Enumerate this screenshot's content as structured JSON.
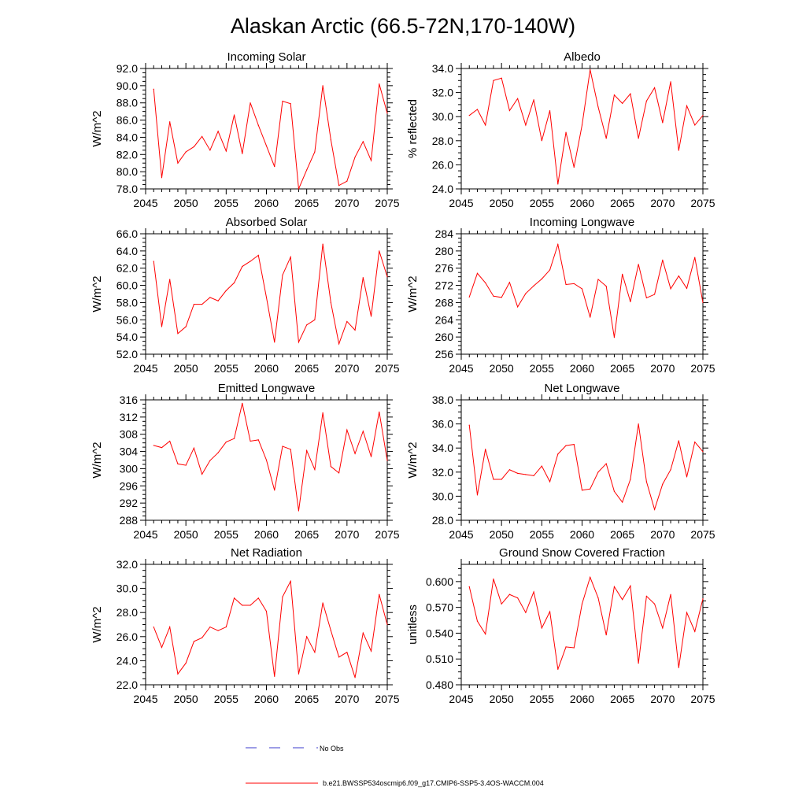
{
  "figure": {
    "title": "Alaskan Arctic (66.5-72N,170-140W)",
    "legend": [
      {
        "label": "No Obs",
        "style": "dashed",
        "color": "#3b3bcc"
      },
      {
        "label": "b.e21.BWSSP534oscmip6.f09_g17.CMIP6-SSP5-3.4OS-WACCM.004",
        "style": "solid",
        "color": "#ff0000"
      }
    ]
  },
  "colors": {
    "series": "#ff0000",
    "axis": "#000000"
  },
  "chart_data": [
    {
      "type": "line",
      "title": "Incoming Solar",
      "xlabel": "",
      "ylabel": "W/m^2",
      "xlim": [
        2045,
        2075
      ],
      "ylim": [
        78,
        92
      ],
      "x_ticks": [
        "2045",
        "2050",
        "2055",
        "2060",
        "2065",
        "2070",
        "2075"
      ],
      "y_ticks": [
        "78.0",
        "80.0",
        "82.0",
        "84.0",
        "86.0",
        "88.0",
        "90.0",
        "92.0"
      ],
      "x": [
        2046,
        2047,
        2048,
        2049,
        2050,
        2051,
        2052,
        2053,
        2054,
        2055,
        2056,
        2057,
        2058,
        2059,
        2060,
        2061,
        2062,
        2063,
        2064,
        2065,
        2066,
        2067,
        2068,
        2069,
        2070,
        2071,
        2072,
        2073,
        2074,
        2075
      ],
      "series": [
        {
          "values": [
            89.6,
            79.3,
            85.8,
            81.0,
            82.3,
            82.9,
            84.1,
            82.5,
            84.7,
            82.4,
            86.6,
            82.1,
            88.0,
            85.4,
            83.0,
            80.6,
            88.2,
            87.9,
            78.0,
            80.2,
            82.3,
            90.0,
            83.7,
            78.4,
            78.9,
            81.7,
            83.5,
            81.3,
            90.2,
            86.8
          ]
        }
      ],
      "grid": false
    },
    {
      "type": "line",
      "title": "Albedo",
      "xlabel": "",
      "ylabel": "% reflected",
      "xlim": [
        2045,
        2075
      ],
      "ylim": [
        24,
        34
      ],
      "x_ticks": [
        "2045",
        "2050",
        "2055",
        "2060",
        "2065",
        "2070",
        "2075"
      ],
      "y_ticks": [
        "24.0",
        "26.0",
        "28.0",
        "30.0",
        "32.0",
        "34.0"
      ],
      "x": [
        2046,
        2047,
        2048,
        2049,
        2050,
        2051,
        2052,
        2053,
        2054,
        2055,
        2056,
        2057,
        2058,
        2059,
        2060,
        2061,
        2062,
        2063,
        2064,
        2065,
        2066,
        2067,
        2068,
        2069,
        2070,
        2071,
        2072,
        2073,
        2074,
        2075
      ],
      "series": [
        {
          "values": [
            30.1,
            30.6,
            29.3,
            33.0,
            33.2,
            30.5,
            31.5,
            29.3,
            31.4,
            28.0,
            30.5,
            24.4,
            28.7,
            25.8,
            29.3,
            33.9,
            30.8,
            28.2,
            31.8,
            31.1,
            31.9,
            28.2,
            31.3,
            32.4,
            29.5,
            32.9,
            27.2,
            30.9,
            29.3,
            30.1
          ]
        }
      ],
      "grid": false
    },
    {
      "type": "line",
      "title": "Absorbed Solar",
      "xlabel": "",
      "ylabel": "W/m^2",
      "xlim": [
        2045,
        2075
      ],
      "ylim": [
        52,
        66
      ],
      "x_ticks": [
        "2045",
        "2050",
        "2055",
        "2060",
        "2065",
        "2070",
        "2075"
      ],
      "y_ticks": [
        "52.0",
        "54.0",
        "56.0",
        "58.0",
        "60.0",
        "62.0",
        "64.0",
        "66.0"
      ],
      "x": [
        2046,
        2047,
        2048,
        2049,
        2050,
        2051,
        2052,
        2053,
        2054,
        2055,
        2056,
        2057,
        2058,
        2059,
        2060,
        2061,
        2062,
        2063,
        2064,
        2065,
        2066,
        2067,
        2068,
        2069,
        2070,
        2071,
        2072,
        2073,
        2074,
        2075
      ],
      "series": [
        {
          "values": [
            62.8,
            55.2,
            60.7,
            54.4,
            55.2,
            57.8,
            57.8,
            58.6,
            58.2,
            59.4,
            60.3,
            62.2,
            62.8,
            63.5,
            58.6,
            53.4,
            61.2,
            63.3,
            53.4,
            55.4,
            56.0,
            64.8,
            58.0,
            53.2,
            55.8,
            54.8,
            60.9,
            56.4,
            64.0,
            61.0
          ]
        }
      ],
      "grid": false
    },
    {
      "type": "line",
      "title": "Incoming Longwave",
      "xlabel": "",
      "ylabel": "W/m^2",
      "xlim": [
        2045,
        2075
      ],
      "ylim": [
        256,
        284
      ],
      "x_ticks": [
        "2045",
        "2050",
        "2055",
        "2060",
        "2065",
        "2070",
        "2075"
      ],
      "y_ticks": [
        "256",
        "260",
        "264",
        "268",
        "272",
        "276",
        "280",
        "284"
      ],
      "x": [
        2046,
        2047,
        2048,
        2049,
        2050,
        2051,
        2052,
        2053,
        2054,
        2055,
        2056,
        2057,
        2058,
        2059,
        2060,
        2061,
        2062,
        2063,
        2064,
        2065,
        2066,
        2067,
        2068,
        2069,
        2070,
        2071,
        2072,
        2073,
        2074,
        2075
      ],
      "series": [
        {
          "values": [
            269.3,
            274.8,
            272.6,
            269.5,
            269.2,
            272.7,
            267.0,
            270.1,
            271.9,
            273.5,
            275.6,
            281.5,
            272.2,
            272.4,
            271.2,
            264.6,
            273.4,
            271.8,
            259.9,
            274.6,
            268.2,
            276.9,
            269.1,
            269.9,
            277.9,
            271.2,
            274.2,
            271.3,
            278.5,
            268.0
          ]
        }
      ],
      "grid": false
    },
    {
      "type": "line",
      "title": "Emitted Longwave",
      "xlabel": "",
      "ylabel": "W/m^2",
      "xlim": [
        2045,
        2075
      ],
      "ylim": [
        288,
        316
      ],
      "x_ticks": [
        "2045",
        "2050",
        "2055",
        "2060",
        "2065",
        "2070",
        "2075"
      ],
      "y_ticks": [
        "288",
        "292",
        "296",
        "300",
        "304",
        "308",
        "312",
        "316"
      ],
      "x": [
        2046,
        2047,
        2048,
        2049,
        2050,
        2051,
        2052,
        2053,
        2054,
        2055,
        2056,
        2057,
        2058,
        2059,
        2060,
        2061,
        2062,
        2063,
        2064,
        2065,
        2066,
        2067,
        2068,
        2069,
        2070,
        2071,
        2072,
        2073,
        2074,
        2075
      ],
      "series": [
        {
          "values": [
            305.4,
            304.9,
            306.4,
            301.1,
            300.8,
            304.8,
            298.7,
            301.9,
            303.7,
            306.2,
            307.0,
            315.2,
            306.4,
            306.7,
            302.0,
            295.0,
            305.2,
            304.5,
            290.2,
            304.2,
            299.8,
            313.0,
            300.5,
            299.0,
            309.0,
            303.5,
            308.7,
            302.8,
            313.2,
            301.9
          ]
        }
      ],
      "grid": false
    },
    {
      "type": "line",
      "title": "Net Longwave",
      "xlabel": "",
      "ylabel": "W/m^2",
      "xlim": [
        2045,
        2075
      ],
      "ylim": [
        28,
        38
      ],
      "x_ticks": [
        "2045",
        "2050",
        "2055",
        "2060",
        "2065",
        "2070",
        "2075"
      ],
      "y_ticks": [
        "28.0",
        "30.0",
        "32.0",
        "34.0",
        "36.0",
        "38.0"
      ],
      "x": [
        2046,
        2047,
        2048,
        2049,
        2050,
        2051,
        2052,
        2053,
        2054,
        2055,
        2056,
        2057,
        2058,
        2059,
        2060,
        2061,
        2062,
        2063,
        2064,
        2065,
        2066,
        2067,
        2068,
        2069,
        2070,
        2071,
        2072,
        2073,
        2074,
        2075
      ],
      "series": [
        {
          "values": [
            35.9,
            30.1,
            33.9,
            31.4,
            31.4,
            32.2,
            31.9,
            31.8,
            31.7,
            32.5,
            31.2,
            33.5,
            34.2,
            34.3,
            30.5,
            30.6,
            32.0,
            32.7,
            30.4,
            29.5,
            31.4,
            36.0,
            31.2,
            28.9,
            31.0,
            32.2,
            34.6,
            31.6,
            34.5,
            33.7
          ]
        }
      ],
      "grid": false
    },
    {
      "type": "line",
      "title": "Net Radiation",
      "xlabel": "",
      "ylabel": "W/m^2",
      "xlim": [
        2045,
        2075
      ],
      "ylim": [
        22,
        32
      ],
      "x_ticks": [
        "2045",
        "2050",
        "2055",
        "2060",
        "2065",
        "2070",
        "2075"
      ],
      "y_ticks": [
        "22.0",
        "24.0",
        "26.0",
        "28.0",
        "30.0",
        "32.0"
      ],
      "x": [
        2046,
        2047,
        2048,
        2049,
        2050,
        2051,
        2052,
        2053,
        2054,
        2055,
        2056,
        2057,
        2058,
        2059,
        2060,
        2061,
        2062,
        2063,
        2064,
        2065,
        2066,
        2067,
        2068,
        2069,
        2070,
        2071,
        2072,
        2073,
        2074,
        2075
      ],
      "series": [
        {
          "values": [
            26.8,
            25.1,
            26.8,
            22.9,
            23.8,
            25.6,
            25.9,
            26.8,
            26.5,
            26.8,
            29.2,
            28.6,
            28.6,
            29.2,
            28.1,
            22.7,
            29.3,
            30.6,
            22.9,
            26.0,
            24.7,
            28.8,
            26.5,
            24.3,
            24.7,
            22.6,
            26.3,
            24.8,
            29.5,
            27.0
          ]
        }
      ],
      "grid": false
    },
    {
      "type": "line",
      "title": "Ground Snow Covered Fraction",
      "xlabel": "",
      "ylabel": "unitless",
      "xlim": [
        2045,
        2075
      ],
      "ylim": [
        0.48,
        0.62
      ],
      "x_ticks": [
        "2045",
        "2050",
        "2055",
        "2060",
        "2065",
        "2070",
        "2075"
      ],
      "y_ticks": [
        "0.480",
        "0.510",
        "0.540",
        "0.570",
        "0.600"
      ],
      "x": [
        2046,
        2047,
        2048,
        2049,
        2050,
        2051,
        2052,
        2053,
        2054,
        2055,
        2056,
        2057,
        2058,
        2059,
        2060,
        2061,
        2062,
        2063,
        2064,
        2065,
        2066,
        2067,
        2068,
        2069,
        2070,
        2071,
        2072,
        2073,
        2074,
        2075
      ],
      "series": [
        {
          "values": [
            0.594,
            0.554,
            0.539,
            0.603,
            0.574,
            0.585,
            0.581,
            0.564,
            0.588,
            0.546,
            0.565,
            0.498,
            0.524,
            0.523,
            0.574,
            0.605,
            0.581,
            0.538,
            0.594,
            0.579,
            0.595,
            0.505,
            0.583,
            0.574,
            0.546,
            0.585,
            0.5,
            0.564,
            0.542,
            0.58
          ]
        }
      ],
      "grid": false
    }
  ]
}
